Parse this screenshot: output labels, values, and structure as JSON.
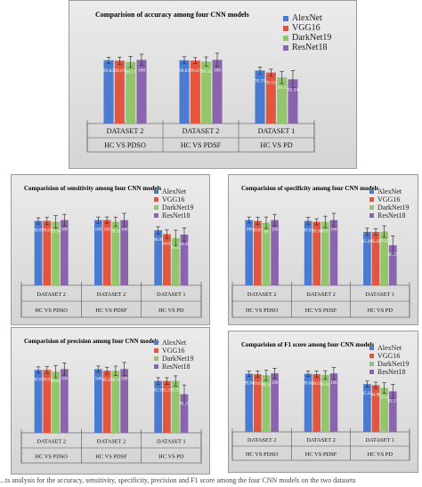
{
  "colors": {
    "AlexNet": "#4a7bd0",
    "VGG16": "#e2553f",
    "DarkNet19": "#93c66a",
    "ResNet18": "#8a64ad"
  },
  "chart_data": [
    {
      "type": "bar",
      "title": "Comparision of accuracy among four CNN models",
      "categories": [
        {
          "line1": "DATASET 2",
          "line2": "HC VS PDSO"
        },
        {
          "line1": "DATASET 2",
          "line2": "HC VS PDSF"
        },
        {
          "line1": "DATASET 1",
          "line2": "HC VS PD"
        }
      ],
      "series": [
        {
          "name": "AlexNet",
          "values": [
            99.83,
            99.83,
            95.79
          ],
          "labels": [
            "99.83",
            "99.83",
            "95.79"
          ]
        },
        {
          "name": "VGG16",
          "values": [
            99.67,
            99.67,
            95.02
          ],
          "labels": [
            "99.67",
            "99.67",
            "95.02"
          ]
        },
        {
          "name": "DarkNet19",
          "values": [
            99.17,
            99.34,
            93.1
          ],
          "labels": [
            "99.17",
            "99.34",
            "93.1"
          ]
        },
        {
          "name": "ResNet18",
          "values": [
            100,
            100,
            92.34
          ],
          "labels": [
            "100",
            "100",
            "92.34"
          ]
        }
      ],
      "error": [
        [
          1.2,
          1.4,
          1.4
        ],
        [
          1.4,
          1.2,
          1.3
        ],
        [
          2.2,
          1.8,
          2.4
        ],
        [
          2.2,
          2.6,
          3.4
        ]
      ],
      "ylim": [
        75,
        105
      ],
      "grid": false,
      "legend": "top-right"
    },
    {
      "type": "bar",
      "title": "Comparision of sensitivity among four CNN models",
      "categories": [
        {
          "line1": "DATASET 2",
          "line2": "HC VS PDSO"
        },
        {
          "line1": "DATASET 2",
          "line2": "HC VS PDSF"
        },
        {
          "line1": "DATASET 1",
          "line2": "HC VS PD"
        }
      ],
      "series": [
        {
          "name": "AlexNet",
          "values": [
            99.67,
            100,
            96.09
          ],
          "labels": [
            "99.67",
            "100",
            "96.09"
          ]
        },
        {
          "name": "VGG16",
          "values": [
            99.67,
            100,
            94.62
          ],
          "labels": [
            "99.67",
            "100",
            "94.62"
          ]
        },
        {
          "name": "DarkNet19",
          "values": [
            99.34,
            99.35,
            93.12
          ],
          "labels": [
            "99.34",
            "99.35",
            "93.12"
          ]
        },
        {
          "name": "ResNet18",
          "values": [
            100,
            100,
            94.44
          ],
          "labels": [
            "100",
            "100",
            "94.44"
          ]
        }
      ],
      "error": [
        [
          1.2,
          1.2,
          1.4
        ],
        [
          1.4,
          1.2,
          1.6
        ],
        [
          2.4,
          1.8,
          3.0
        ],
        [
          2.2,
          2.6,
          2.6
        ]
      ],
      "ylim": [
        75,
        105
      ],
      "grid": false,
      "legend": "top-right"
    },
    {
      "type": "bar",
      "title": "Comparision of specificity among four CNN models",
      "categories": [
        {
          "line1": "DATASET 2",
          "line2": "HC VS PDSO"
        },
        {
          "line1": "DATASET 2",
          "line2": "HC VS PDSF"
        },
        {
          "line1": "DATASET 1",
          "line2": "HC VS PD"
        }
      ],
      "series": [
        {
          "name": "AlexNet",
          "values": [
            100,
            99.67,
            95.49
          ],
          "labels": [
            "100",
            "99.67",
            "95.49"
          ]
        },
        {
          "name": "VGG16",
          "values": [
            99.67,
            99.34,
            95.42
          ],
          "labels": [
            "99.67",
            "99.34",
            "95.42"
          ]
        },
        {
          "name": "DarkNet19",
          "values": [
            99,
            99.33,
            95.62
          ],
          "labels": [
            "99",
            "99.33",
            "95.62"
          ]
        },
        {
          "name": "ResNet18",
          "values": [
            100,
            100,
            90.37
          ],
          "labels": [
            "100",
            "100",
            "90.37"
          ]
        }
      ],
      "error": [
        [
          1.2,
          1.4,
          1.4
        ],
        [
          1.4,
          1.2,
          1.3
        ],
        [
          2.2,
          2.2,
          2.2
        ],
        [
          2.2,
          2.6,
          3.6
        ]
      ],
      "ylim": [
        75,
        105
      ],
      "grid": false,
      "legend": "top-right"
    },
    {
      "type": "bar",
      "title": "Comparision of precision among four CNN models",
      "categories": [
        {
          "line1": "DATASET 2",
          "line2": "HC VS PDSO"
        },
        {
          "line1": "DATASET 2",
          "line2": "HC VS PDSF"
        },
        {
          "line1": "DATASET 1",
          "line2": "HC VS PD"
        }
      ],
      "series": [
        {
          "name": "AlexNet",
          "values": [
            99.67,
            100,
            95.35
          ],
          "labels": [
            "99.67",
            "100",
            "95.35"
          ]
        },
        {
          "name": "VGG16",
          "values": [
            99.67,
            99.35,
            95.33
          ],
          "labels": [
            "99.67",
            "99.35",
            "95.33"
          ]
        },
        {
          "name": "DarkNet19",
          "values": [
            99.02,
            99.35,
            95.35
          ],
          "labels": [
            "99.02",
            "99.35",
            "95.35"
          ]
        },
        {
          "name": "ResNet18",
          "values": [
            100,
            100,
            90.15
          ],
          "labels": [
            "100",
            "100",
            "90.15"
          ]
        }
      ],
      "error": [
        [
          1.2,
          1.2,
          1.3
        ],
        [
          1.4,
          1.4,
          1.3
        ],
        [
          2.4,
          1.8,
          2.0
        ],
        [
          2.4,
          2.6,
          3.6
        ]
      ],
      "ylim": [
        75,
        105
      ],
      "grid": false,
      "legend": "top-right"
    },
    {
      "type": "bar",
      "title": "Comparision of  F1 score among four CNN models",
      "categories": [
        {
          "line1": "DATASET 2",
          "line2": "HC VS PDSO"
        },
        {
          "line1": "DATASET 2",
          "line2": "HC VS PDSF"
        },
        {
          "line1": "DATASET 1",
          "line2": "HC VS PD"
        }
      ],
      "series": [
        {
          "name": "AlexNet",
          "values": [
            99.84,
            99.84,
            95.42
          ],
          "labels": [
            "99.84",
            "99.84",
            "95.42"
          ]
        },
        {
          "name": "VGG16",
          "values": [
            99.67,
            99.67,
            94.98
          ],
          "labels": [
            "99.67",
            "99.67",
            "94.98"
          ]
        },
        {
          "name": "DarkNet19",
          "values": [
            99.18,
            99.34,
            93.8
          ],
          "labels": [
            "99.18",
            "99.34",
            "93.8"
          ]
        },
        {
          "name": "ResNet18",
          "values": [
            100,
            100,
            92.31
          ],
          "labels": [
            "100",
            "100",
            "92.31"
          ]
        }
      ],
      "error": [
        [
          1.2,
          1.2,
          1.3
        ],
        [
          1.4,
          1.4,
          1.3
        ],
        [
          2.2,
          1.8,
          2.2
        ],
        [
          2.2,
          2.6,
          3.0
        ]
      ],
      "ylim": [
        75,
        105
      ],
      "grid": false,
      "legend": "top-right"
    }
  ],
  "caption": "...ts analysis for the accuracy, sensitivity, specificity, precision and F1 score among the four CNN models on the two datasets"
}
